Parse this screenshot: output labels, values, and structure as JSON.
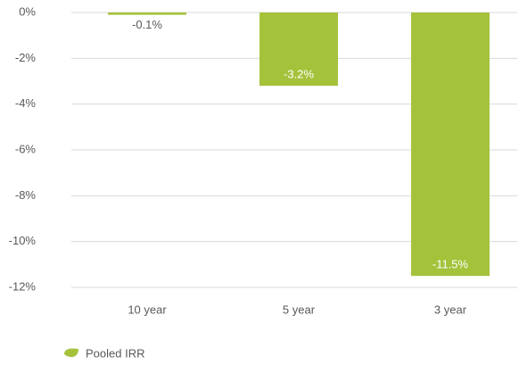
{
  "chart_data": {
    "type": "bar",
    "categories": [
      "10 year",
      "5 year",
      "3 year"
    ],
    "series": [
      {
        "name": "Pooled IRR",
        "color": "#a5c23b",
        "values": [
          -0.1,
          -3.2,
          -11.5
        ],
        "value_labels": [
          "-0.1%",
          "-3.2%",
          "-11.5%"
        ]
      }
    ],
    "ylim": [
      -12,
      0
    ],
    "yticks": [
      {
        "value": -12,
        "label": "-12%"
      },
      {
        "value": -10,
        "label": "-10%"
      },
      {
        "value": -8,
        "label": "-8%"
      },
      {
        "value": -6,
        "label": "-6%"
      },
      {
        "value": -4,
        "label": "-4%"
      },
      {
        "value": -2,
        "label": "-2%"
      },
      {
        "value": 0,
        "label": "0%"
      }
    ],
    "grid": true,
    "legend": "bottom-left"
  }
}
